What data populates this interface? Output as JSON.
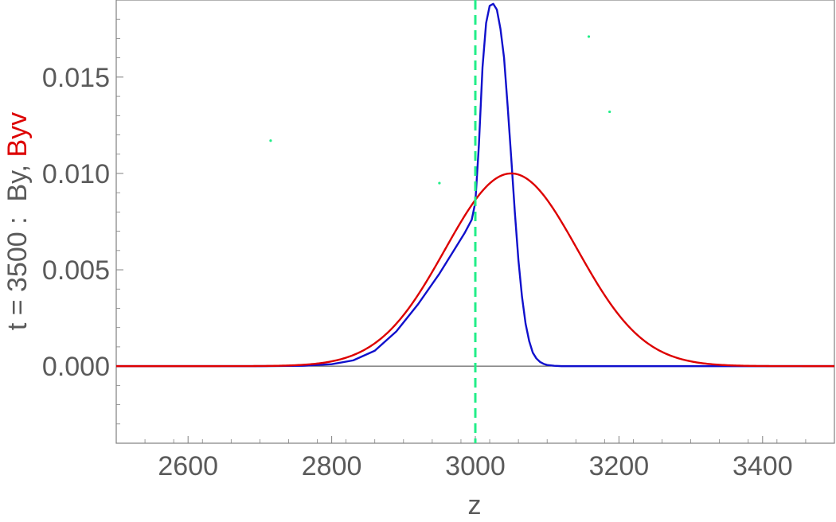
{
  "chart_data": {
    "type": "line",
    "title": "",
    "xlabel": "z",
    "ylabel_parts": [
      {
        "text": "t = 3500 :  By, ",
        "color": "#5a5a5a"
      },
      {
        "text": "Byv",
        "color": "#dd0000"
      }
    ],
    "xlim": [
      2500,
      3500
    ],
    "ylim": [
      -0.004,
      0.019
    ],
    "x_ticks": [
      {
        "value": 2600,
        "label": "2600"
      },
      {
        "value": 2800,
        "label": "2800"
      },
      {
        "value": 3000,
        "label": "3000"
      },
      {
        "value": 3200,
        "label": "3200"
      },
      {
        "value": 3400,
        "label": "3400"
      }
    ],
    "y_ticks": [
      {
        "value": 0.0,
        "label": "0.000"
      },
      {
        "value": 0.005,
        "label": "0.005"
      },
      {
        "value": 0.01,
        "label": "0.010"
      },
      {
        "value": 0.015,
        "label": "0.015"
      }
    ],
    "grid": false,
    "colors": {
      "By": "#1010cc",
      "Byv": "#dd0000",
      "marker": "#22ee88",
      "frame": "#808080",
      "zero_line": "#404040"
    },
    "vertical_line": {
      "x": 3000,
      "style": "dashed"
    },
    "series": [
      {
        "key": "By",
        "x": [
          2500,
          2700,
          2760,
          2800,
          2830,
          2860,
          2890,
          2920,
          2950,
          2970,
          2985,
          2995,
          3000,
          3005,
          3010,
          3015,
          3020,
          3025,
          3030,
          3035,
          3040,
          3045,
          3050,
          3055,
          3060,
          3065,
          3070,
          3075,
          3080,
          3085,
          3090,
          3095,
          3100,
          3110,
          3120,
          3150,
          3500
        ],
        "y": [
          0,
          0,
          2e-05,
          0.0001,
          0.0003,
          0.0008,
          0.0018,
          0.0032,
          0.0048,
          0.006,
          0.0069,
          0.0076,
          0.0085,
          0.0115,
          0.0155,
          0.0178,
          0.0187,
          0.0188,
          0.0185,
          0.0175,
          0.016,
          0.0135,
          0.0108,
          0.008,
          0.0055,
          0.0036,
          0.0022,
          0.0013,
          0.0007,
          0.0004,
          0.00022,
          0.00012,
          6e-05,
          2e-05,
          0,
          0,
          0
        ]
      },
      {
        "key": "Byv",
        "gaussian": {
          "amplitude": 0.01,
          "center": 3050,
          "sigma": 92
        },
        "x_range": [
          2500,
          3500
        ]
      }
    ],
    "markers": [
      {
        "x": 2715,
        "y": 0.0117
      },
      {
        "x": 2950,
        "y": 0.0095
      },
      {
        "x": 3158,
        "y": 0.0171
      },
      {
        "x": 3187,
        "y": 0.0132
      }
    ]
  }
}
